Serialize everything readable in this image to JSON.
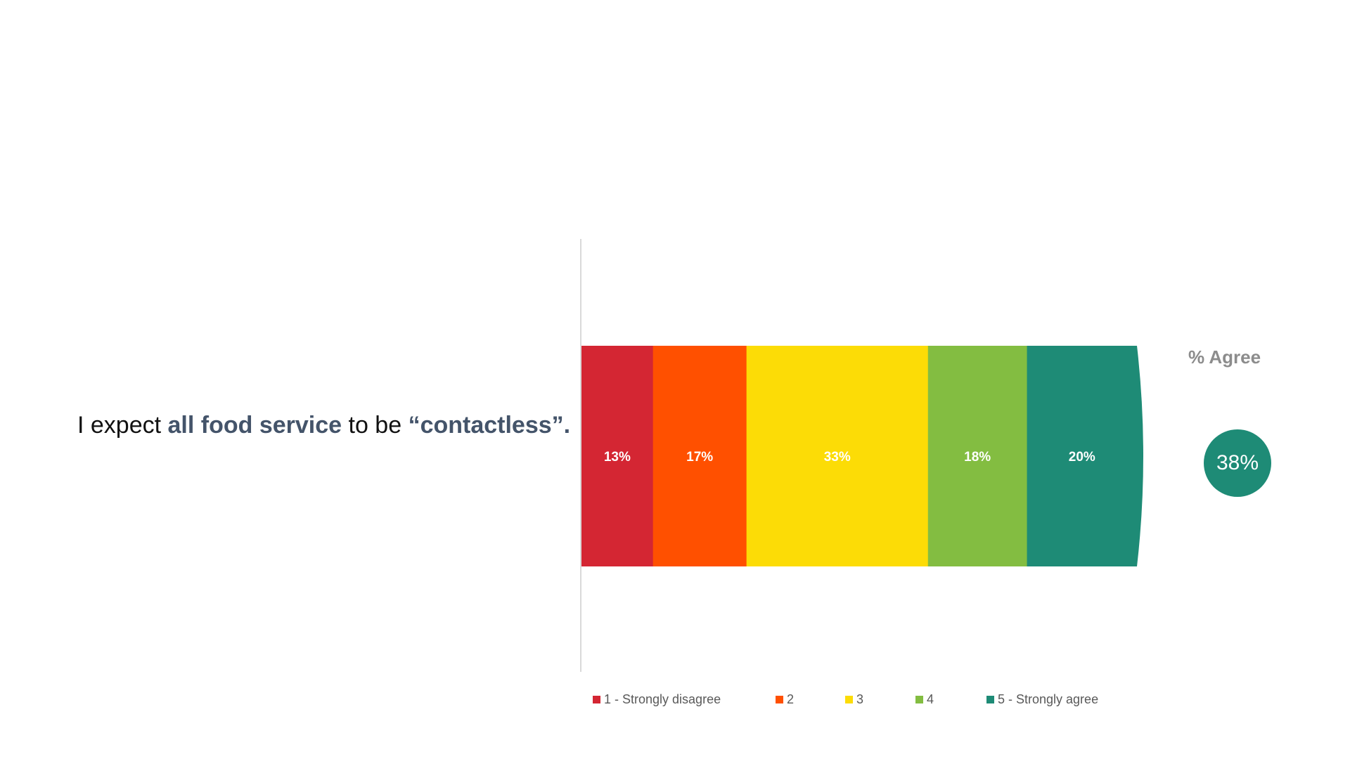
{
  "statement": {
    "part1": "I expect ",
    "highlight1": "all food service",
    "part2": " to be ",
    "highlight2": "“contactless”."
  },
  "agree_summary": {
    "title": "% Agree",
    "value": "38%",
    "color": "#1e8b76"
  },
  "chart_data": {
    "type": "bar",
    "orientation": "horizontal-stacked",
    "categories": [
      "I expect all food service to be “contactless”."
    ],
    "series": [
      {
        "name": "1 - Strongly disagree",
        "values": [
          13
        ],
        "label": "13%",
        "color": "#d42633"
      },
      {
        "name": "2",
        "values": [
          17
        ],
        "label": "17%",
        "color": "#ff5000"
      },
      {
        "name": "3",
        "values": [
          33
        ],
        "label": "33%",
        "color": "#fcdc06"
      },
      {
        "name": "4",
        "values": [
          18
        ],
        "label": "18%",
        "color": "#83bd41"
      },
      {
        "name": "5 - Strongly agree",
        "values": [
          20
        ],
        "label": "20%",
        "color": "#1e8b76"
      }
    ],
    "xlim": [
      0,
      100
    ],
    "legend_position": "bottom",
    "grid": false
  }
}
